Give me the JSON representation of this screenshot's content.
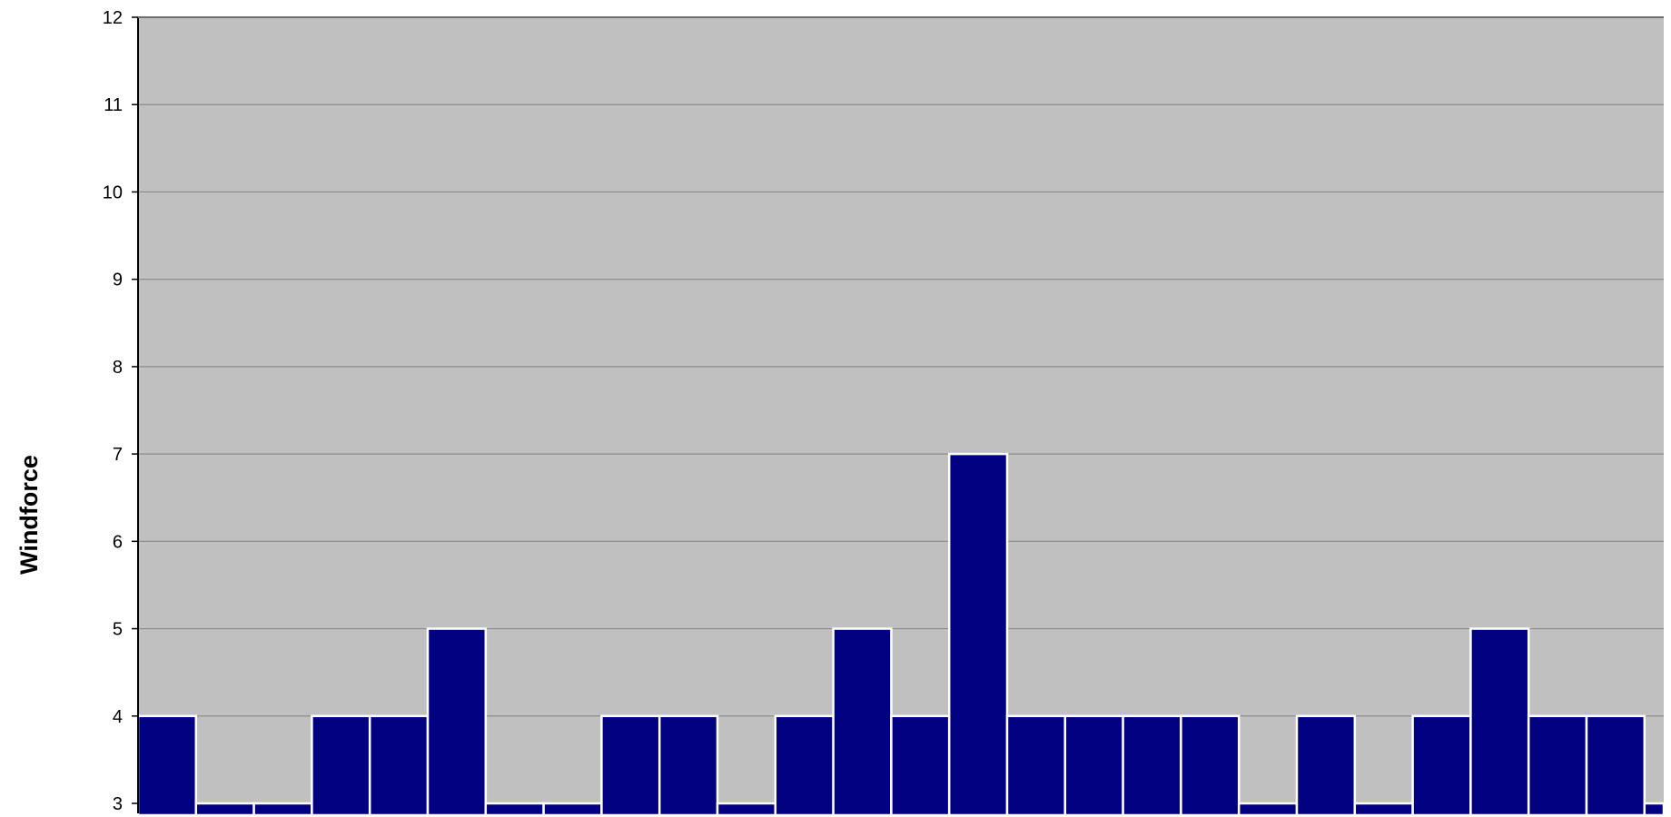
{
  "chart_data": {
    "type": "bar",
    "title": "",
    "xlabel": "",
    "ylabel": "Windforce",
    "ylim": [
      3,
      12
    ],
    "yticks": [
      3,
      4,
      5,
      6,
      7,
      8,
      9,
      10,
      11,
      12
    ],
    "grid": true,
    "legend": "none",
    "colors": {
      "plot_background": "#c0c0c0",
      "bar_fill": "#000080",
      "bar_edge": "#ffffff",
      "gridline": "#8c8c8c",
      "axis": "#000000"
    },
    "values": [
      4,
      3,
      3,
      4,
      4,
      5,
      3,
      3,
      4,
      4,
      3,
      4,
      5,
      4,
      7,
      4,
      4,
      4,
      4,
      3,
      4,
      3,
      4,
      5,
      4,
      4,
      3
    ]
  }
}
